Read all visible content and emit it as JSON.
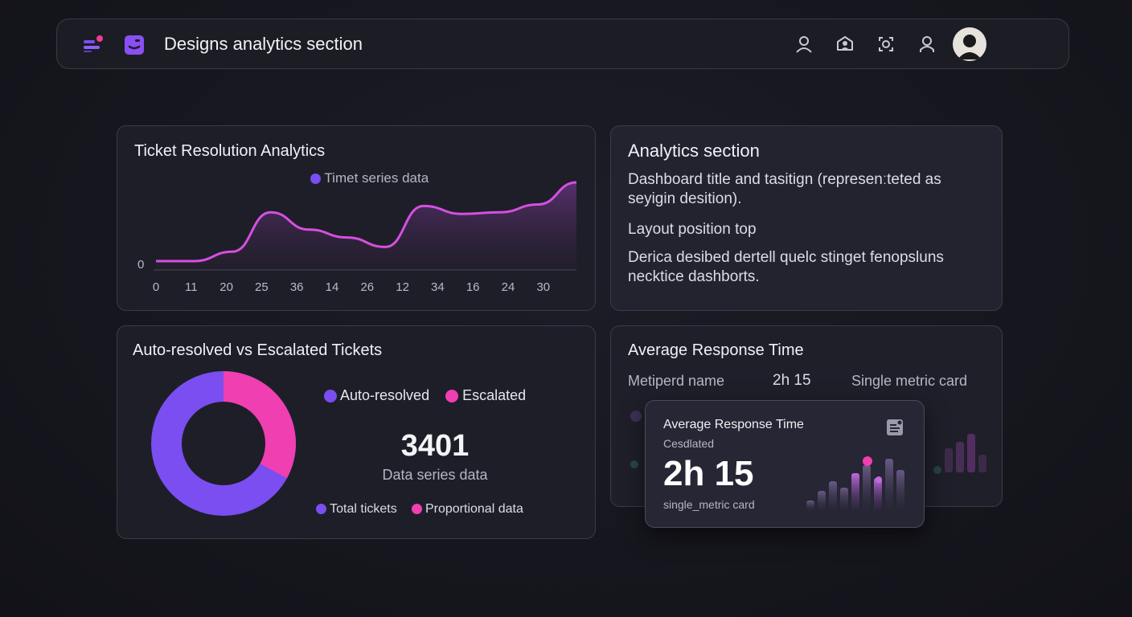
{
  "header": {
    "title": "Designs analytics section",
    "icons": [
      "logo-icon",
      "app-icon",
      "user-icon",
      "shield-icon",
      "scan-icon",
      "profile-icon",
      "avatar"
    ]
  },
  "ticket_resolution": {
    "title": "Ticket Resolution Analytics",
    "legend": "Timet series data",
    "y_label_zero": "0",
    "chart_data": {
      "type": "area",
      "x": [
        "0",
        "11",
        "20",
        "25",
        "36",
        "14",
        "26",
        "12",
        "34",
        "16",
        "24",
        "30"
      ],
      "values": [
        0,
        0,
        12,
        62,
        40,
        30,
        18,
        70,
        60,
        62,
        72,
        100
      ],
      "series": [
        {
          "name": "Timet series data",
          "color": "#d64fe0"
        }
      ]
    }
  },
  "analytics_section": {
    "title": "Analytics section",
    "para1_line1": "Dashboard title and tasitign (represenːteted as",
    "para1_line2": "seyigin desition).",
    "para2": "Layout position top",
    "para3_line1": "Derica desibed dertell quelc stinget fenopsluns",
    "para3_line2": "necktice dashborts."
  },
  "auto_resolved": {
    "title": "Auto-resolved vs Escalated Tickets",
    "legend_a": "Auto-resolved",
    "legend_b": "Escalated",
    "total": "3401",
    "total_caption": "Data series data",
    "legend_c": "Total tickets",
    "legend_d": "Proportional data",
    "chart_data": {
      "type": "pie",
      "categories": [
        "Auto-resolved",
        "Escalated"
      ],
      "values": [
        67,
        33
      ],
      "colors": [
        "#7a4ef0",
        "#f03fb0"
      ]
    }
  },
  "avg_response": {
    "title": "Average Response Time",
    "metric_name": "Metiperd name",
    "metric_value": "2h 15",
    "metric_caption": "Single metric card"
  },
  "metric_card": {
    "title": "Average Response Time",
    "subtitle": "Cesdlated",
    "value": "2h 15",
    "caption": "single_metric card"
  },
  "colors": {
    "accent_purple": "#7a4ef0",
    "accent_pink": "#f03fb0",
    "line": "#d64fe0"
  }
}
